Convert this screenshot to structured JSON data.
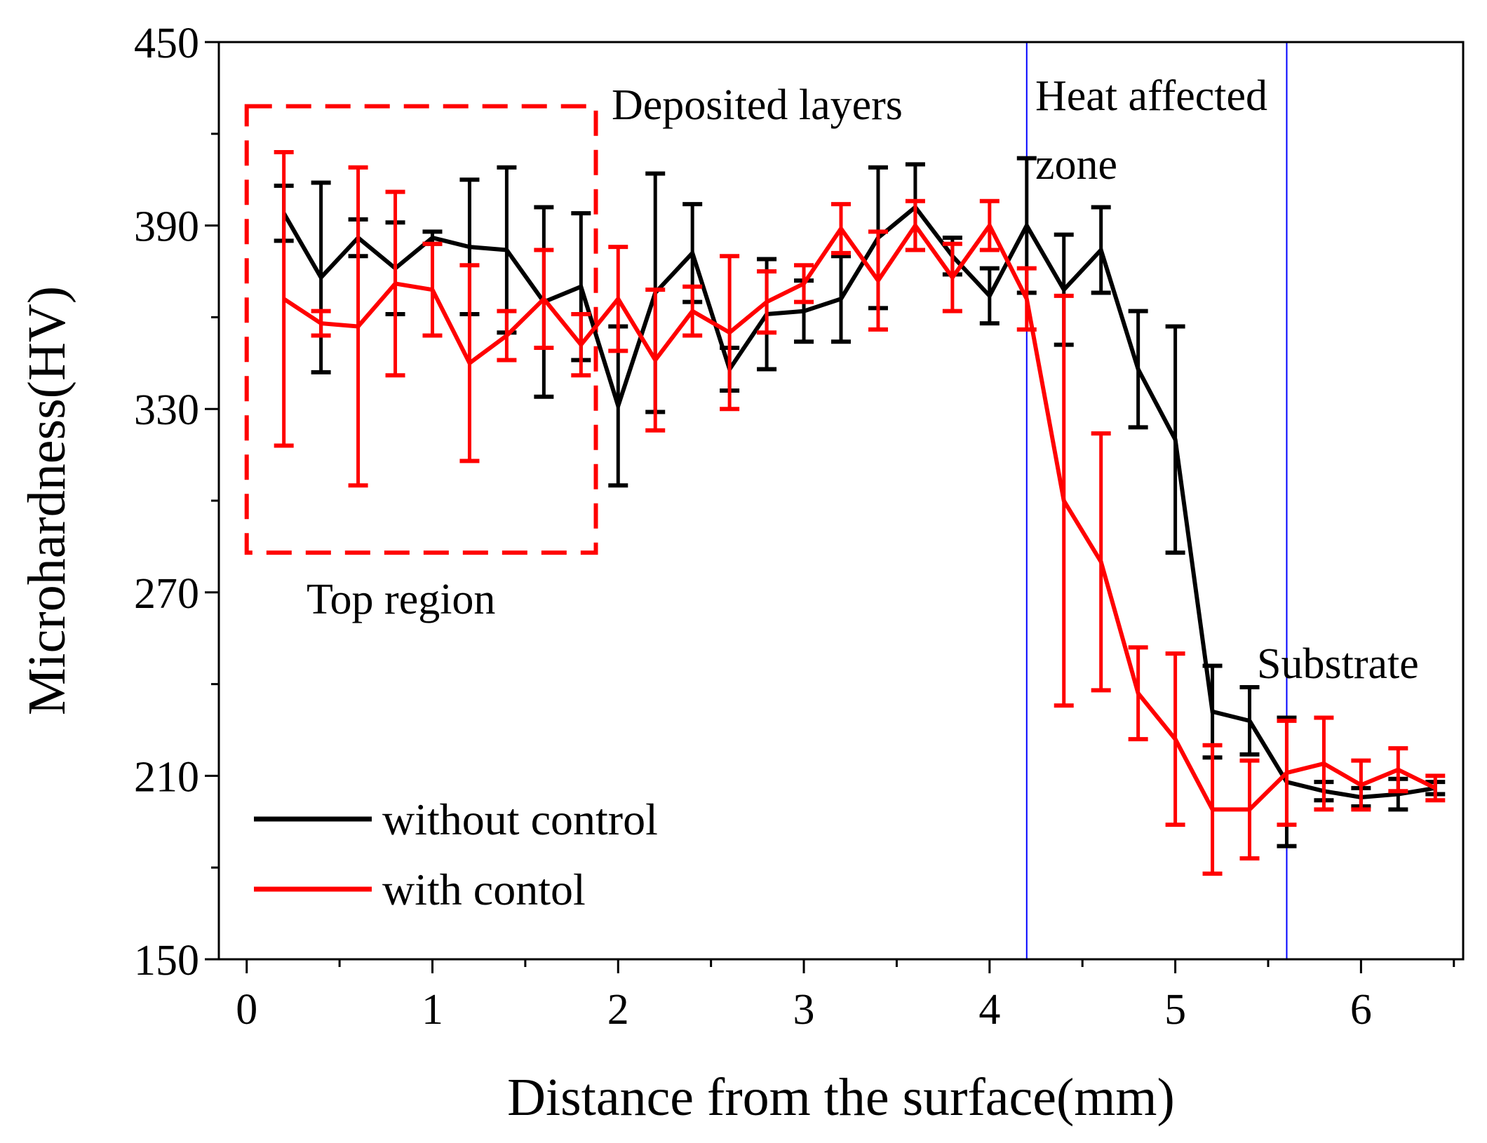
{
  "chart_data": {
    "type": "line",
    "title": "",
    "xlabel": "Distance from the surface(mm)",
    "ylabel": "Microhardness(HV)",
    "xlim": [
      -0.15,
      6.55
    ],
    "ylim": [
      150,
      450
    ],
    "xticks": [
      0,
      1,
      2,
      3,
      4,
      5,
      6
    ],
    "yticks": [
      150,
      210,
      270,
      330,
      390,
      450
    ],
    "grid": false,
    "legend_position": "bottom-left",
    "series": [
      {
        "name": "without control",
        "color": "#000000",
        "x": [
          0.2,
          0.4,
          0.6,
          0.8,
          1.0,
          1.2,
          1.4,
          1.6,
          1.8,
          2.0,
          2.2,
          2.4,
          2.6,
          2.8,
          3.0,
          3.2,
          3.4,
          3.6,
          3.8,
          4.0,
          4.2,
          4.4,
          4.6,
          4.8,
          5.0,
          5.2,
          5.4,
          5.6,
          5.8,
          6.0,
          6.2,
          6.4
        ],
        "y": [
          394,
          373,
          386,
          376,
          386,
          383,
          382,
          365,
          370,
          331,
          368,
          381,
          343,
          361,
          362,
          366,
          386,
          396,
          380,
          367,
          390,
          369,
          382,
          343,
          320,
          231,
          228,
          208,
          205,
          203,
          204,
          206
        ],
        "err": [
          9,
          31,
          6,
          15,
          2,
          22,
          27,
          31,
          24,
          26,
          39,
          16,
          7,
          18,
          10,
          14,
          23,
          14,
          6,
          9,
          22,
          18,
          14,
          19,
          37,
          15,
          11,
          21,
          3,
          3,
          5,
          2
        ]
      },
      {
        "name": "with contol",
        "color": "#ff0000",
        "x": [
          0.2,
          0.4,
          0.6,
          0.8,
          1.0,
          1.2,
          1.4,
          1.6,
          1.8,
          2.0,
          2.2,
          2.4,
          2.6,
          2.8,
          3.0,
          3.2,
          3.4,
          3.6,
          3.8,
          4.0,
          4.2,
          4.4,
          4.6,
          4.8,
          5.0,
          5.2,
          5.4,
          5.6,
          5.8,
          6.0,
          6.2,
          6.4
        ],
        "y": [
          366,
          358,
          357,
          371,
          369,
          345,
          354,
          366,
          351,
          366,
          346,
          362,
          355,
          365,
          371,
          389,
          372,
          390,
          373,
          390,
          366,
          300,
          280,
          237,
          222,
          199,
          199,
          211,
          214,
          207,
          212,
          206
        ],
        "err": [
          48,
          4,
          52,
          30,
          15,
          32,
          8,
          16,
          10,
          17,
          23,
          8,
          25,
          10,
          6,
          8,
          16,
          8,
          11,
          8,
          10,
          67,
          42,
          15,
          28,
          21,
          16,
          17,
          15,
          8,
          7,
          4
        ]
      }
    ],
    "vertical_lines": [
      {
        "x": 4.2,
        "color": "#0000ff"
      },
      {
        "x": 5.6,
        "color": "#0000ff"
      }
    ],
    "highlight_box": {
      "x_range": [
        0.0,
        1.88
      ],
      "y_range": [
        283,
        429
      ],
      "color": "#ff0000",
      "style": "dashed"
    },
    "annotations": {
      "deposited_layers": "Deposited layers",
      "heat_affected_line1": "Heat affected",
      "heat_affected_line2": "zone",
      "substrate": "Substrate",
      "top_region": "Top region"
    }
  }
}
